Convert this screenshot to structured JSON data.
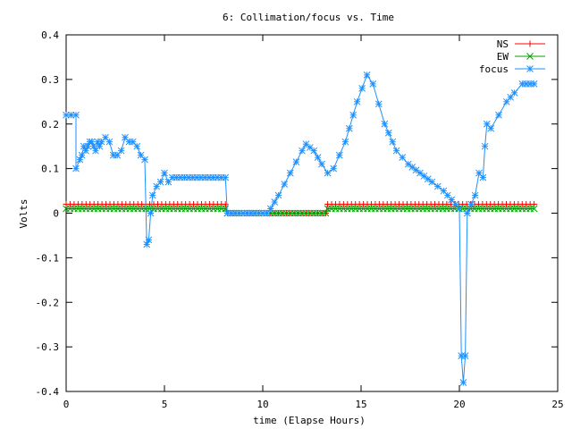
{
  "chart_data": {
    "type": "line",
    "title": "6: Collimation/focus vs. Time",
    "xlabel": "time (Elapse Hours)",
    "ylabel": "Volts",
    "xlim": [
      0,
      25
    ],
    "ylim": [
      -0.4,
      0.4
    ],
    "xticks": [
      "0",
      "5",
      "10",
      "15",
      "20",
      "25"
    ],
    "yticks": [
      "-0.4",
      "-0.3",
      "-0.2",
      "-0.1",
      "0",
      "0.1",
      "0.2",
      "0.3",
      "0.4"
    ],
    "grid": false,
    "legend_position": "top-right",
    "series": [
      {
        "name": "NS",
        "color": "#ff0000",
        "marker": "plus",
        "points": [
          [
            0,
            0.02
          ],
          [
            8.1,
            0.02
          ],
          [
            8.2,
            0.0
          ],
          [
            13.2,
            0.0
          ],
          [
            13.3,
            0.02
          ],
          [
            23.8,
            0.02
          ]
        ]
      },
      {
        "name": "EW",
        "color": "#00a000",
        "marker": "x",
        "points": [
          [
            0,
            0.01
          ],
          [
            8.1,
            0.01
          ],
          [
            8.2,
            0.0
          ],
          [
            13.2,
            0.0
          ],
          [
            13.3,
            0.01
          ],
          [
            23.8,
            0.01
          ]
        ]
      },
      {
        "name": "focus",
        "color": "#1e90ff",
        "marker": "star",
        "points": [
          [
            0,
            0.22
          ],
          [
            0.5,
            0.22
          ],
          [
            0.5,
            0.1
          ],
          [
            0.7,
            0.12
          ],
          [
            0.8,
            0.13
          ],
          [
            0.9,
            0.15
          ],
          [
            1.0,
            0.14
          ],
          [
            1.1,
            0.15
          ],
          [
            1.2,
            0.16
          ],
          [
            1.3,
            0.16
          ],
          [
            1.4,
            0.15
          ],
          [
            1.5,
            0.14
          ],
          [
            1.6,
            0.16
          ],
          [
            1.7,
            0.15
          ],
          [
            1.8,
            0.16
          ],
          [
            2.0,
            0.17
          ],
          [
            2.2,
            0.16
          ],
          [
            2.4,
            0.13
          ],
          [
            2.6,
            0.13
          ],
          [
            2.8,
            0.14
          ],
          [
            3.0,
            0.17
          ],
          [
            3.2,
            0.16
          ],
          [
            3.4,
            0.16
          ],
          [
            3.6,
            0.15
          ],
          [
            3.8,
            0.13
          ],
          [
            4.0,
            0.12
          ],
          [
            4.1,
            -0.07
          ],
          [
            4.2,
            -0.06
          ],
          [
            4.3,
            0.0
          ],
          [
            4.4,
            0.04
          ],
          [
            4.6,
            0.06
          ],
          [
            4.8,
            0.07
          ],
          [
            5.0,
            0.09
          ],
          [
            5.2,
            0.07
          ],
          [
            5.4,
            0.08
          ],
          [
            8.1,
            0.08
          ],
          [
            8.2,
            0.0
          ],
          [
            10.2,
            0.0
          ],
          [
            10.4,
            0.01
          ],
          [
            10.8,
            0.04
          ],
          [
            11.4,
            0.09
          ],
          [
            12.0,
            0.14
          ],
          [
            12.2,
            0.155
          ],
          [
            12.6,
            0.14
          ],
          [
            13.0,
            0.11
          ],
          [
            13.3,
            0.09
          ],
          [
            13.6,
            0.1
          ],
          [
            14.2,
            0.16
          ],
          [
            14.8,
            0.25
          ],
          [
            15.3,
            0.31
          ],
          [
            15.6,
            0.29
          ],
          [
            16.2,
            0.2
          ],
          [
            16.8,
            0.14
          ],
          [
            17.4,
            0.11
          ],
          [
            18.0,
            0.09
          ],
          [
            18.6,
            0.07
          ],
          [
            19.2,
            0.05
          ],
          [
            19.8,
            0.02
          ],
          [
            20.0,
            0.01
          ],
          [
            20.1,
            -0.32
          ],
          [
            20.2,
            -0.38
          ],
          [
            20.3,
            -0.32
          ],
          [
            20.4,
            0.0
          ],
          [
            20.6,
            0.02
          ],
          [
            20.8,
            0.04
          ],
          [
            21.0,
            0.09
          ],
          [
            21.2,
            0.08
          ],
          [
            21.3,
            0.15
          ],
          [
            21.4,
            0.2
          ],
          [
            21.6,
            0.19
          ],
          [
            22.0,
            0.22
          ],
          [
            22.4,
            0.25
          ],
          [
            22.8,
            0.27
          ],
          [
            23.2,
            0.29
          ],
          [
            23.8,
            0.29
          ]
        ]
      }
    ]
  }
}
